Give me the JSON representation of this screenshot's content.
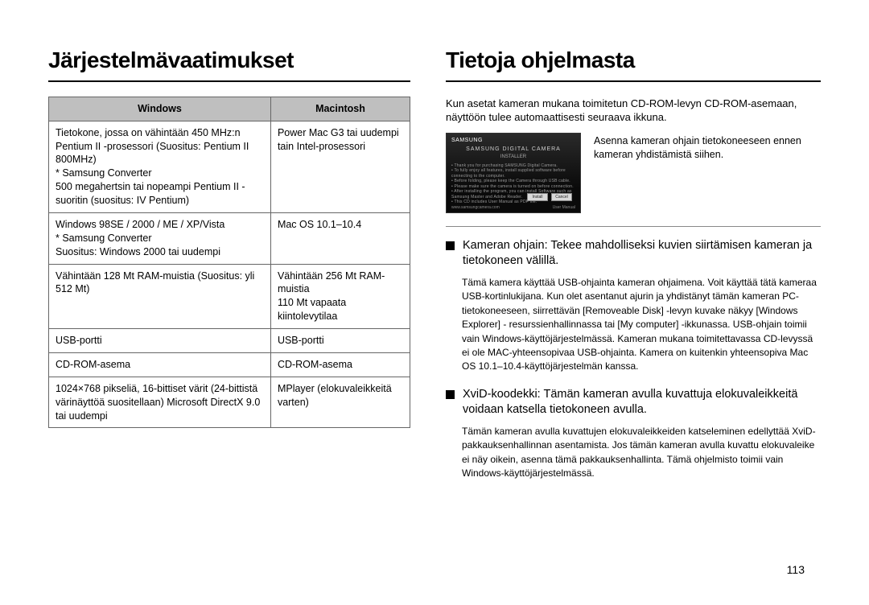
{
  "page_number": "113",
  "left": {
    "h1": "Järjestelmävaatimukset",
    "table": {
      "headers": [
        "Windows",
        "Macintosh"
      ],
      "rows": [
        {
          "win": "Tietokone, jossa on vähintään 450 MHz:n Pentium II -prosessori (Suositus: Pentium II 800MHz)\n* Samsung Converter\n  500 megahertsin tai nopeampi Pentium II -suoritin (suositus: IV Pentium)",
          "mac": "Power Mac G3 tai uudempi tain Intel-prosessori"
        },
        {
          "win": "Windows 98SE / 2000 / ME / XP/Vista\n* Samsung Converter\n  Suositus: Windows 2000 tai uudempi",
          "mac": "Mac OS 10.1–10.4"
        },
        {
          "win": "Vähintään 128 Mt RAM-muistia (Suositus: yli 512 Mt)",
          "mac": "Vähintään 256 Mt RAM-muistia\n110 Mt vapaata kiintolevytilaa"
        },
        {
          "win": "USB-portti",
          "mac": "USB-portti"
        },
        {
          "win": "CD-ROM-asema",
          "mac": "CD-ROM-asema"
        },
        {
          "win": "1024×768 pikseliä, 16-bittiset värit (24-bittistä värinäyttöä suositellaan) Microsoft DirectX 9.0 tai uudempi",
          "mac": "MPlayer (elokuvaleikkeitä varten)"
        }
      ]
    }
  },
  "right": {
    "h1": "Tietoja ohjelmasta",
    "intro": "Kun asetat kameran mukana toimitetun CD-ROM-levyn CD-ROM-asemaan, näyttöön tulee automaattisesti seuraava ikkuna.",
    "driver_note": "Asenna kameran ohjain tietokoneeseen ennen kameran yhdistämistä siihen.",
    "installer": {
      "brand": "SAMSUNG",
      "title": "SAMSUNG DIGITAL CAMERA",
      "subtitle": "INSTALLER",
      "buttons": [
        "Install",
        "Cancel"
      ],
      "lines": "• Thank you for purchasing SAMSUNG Digital Camera.\n• To fully enjoy all features, install supplied software before connecting to the computer.\n• Before folding, please keep the Camera through USB cable.\n• Please make sure the camera is turned on before connection.\n• After installing the program, you can install Software such as Samsung Master and Adobe Reader.\n• This CD includes User Manual as PDF file.",
      "foot_left": "www.samsungcamera.com",
      "foot_right": "User Manual"
    },
    "bullets": [
      {
        "head": "Kameran ohjain: Tekee mahdolliseksi kuvien siirtämisen kameran ja tietokoneen välillä.",
        "body": "Tämä kamera käyttää USB-ohjainta kameran ohjaimena. Voit käyttää tätä kameraa USB-kortinlukijana. Kun olet asentanut ajurin ja yhdistänyt tämän kameran PC-tietokoneeseen, siirrettävän [Removeable Disk] -levyn kuvake näkyy [Windows Explorer] - resurssienhallinnassa tai [My computer] -ikkunassa. USB-ohjain toimii vain Windows-käyttöjärjestelmässä. Kameran mukana toimitettavassa CD-levyssä ei ole MAC-yhteensopivaa USB-ohjainta. Kamera on kuitenkin yhteensopiva Mac OS 10.1–10.4-käyttöjärjestelmän kanssa."
      },
      {
        "head": "XviD-koodekki: Tämän kameran avulla kuvattuja elokuvaleikkeitä voidaan katsella tietokoneen avulla.",
        "body": "Tämän kameran avulla kuvattujen elokuvaleikkeiden katseleminen edellyttää XviD-pakkauksenhallinnan asentamista. Jos tämän kameran avulla kuvattu elokuvaleike ei näy oikein, asenna tämä pakkauksenhallinta. Tämä ohjelmisto toimii vain Windows-käyttöjärjestelmässä."
      }
    ]
  }
}
